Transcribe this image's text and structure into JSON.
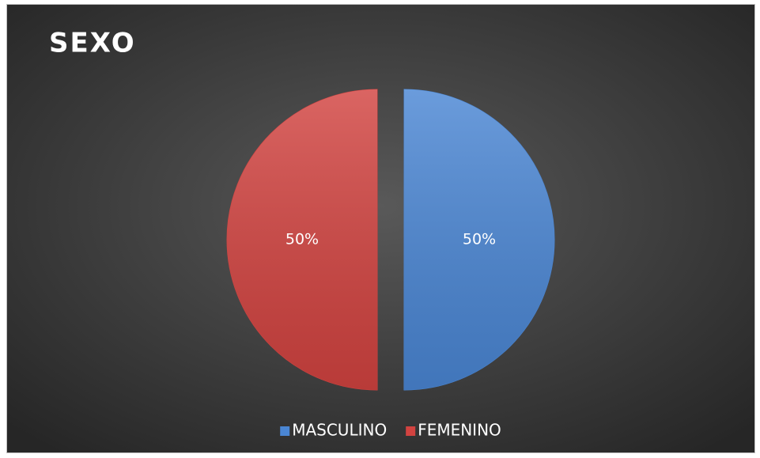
{
  "chart_data": {
    "type": "pie",
    "title": "SEXO",
    "categories": [
      "MASCULINO",
      "FEMENINO"
    ],
    "values": [
      50,
      50
    ],
    "value_labels": [
      "50%",
      "50%"
    ],
    "colors": [
      "#4a86d4",
      "#d24340"
    ],
    "legend": "bottom"
  }
}
